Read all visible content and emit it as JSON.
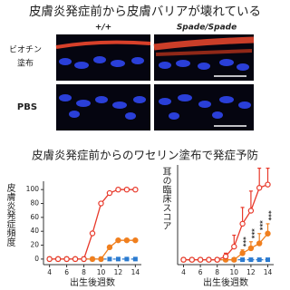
{
  "header": {
    "title": "皮膚炎発症前から皮膚バリアが壊れている",
    "columns": [
      "+/+",
      "Spade/Spade"
    ],
    "rows": [
      [
        "ビオチン",
        "塗布"
      ],
      [
        "PBS"
      ]
    ]
  },
  "section_title": "皮膚炎発症前からのワセリン塗布で発症予防",
  "chart_data": [
    {
      "type": "line",
      "ylabel": "皮膚炎発症頻度",
      "xlabel": "出生後週数",
      "x": [
        4,
        5,
        6,
        7,
        8,
        9,
        10,
        11,
        12,
        13,
        14
      ],
      "xlim": [
        3.3,
        14.7
      ],
      "xticks": [
        4,
        6,
        8,
        10,
        12,
        14
      ],
      "ylim": [
        -8,
        112
      ],
      "yticks": [
        0,
        20,
        40,
        60,
        80,
        100
      ],
      "series": [
        {
          "name": "",
          "color": "#2b7bd0",
          "marker": "square",
          "dash": true,
          "values": [
            0,
            0,
            0,
            0,
            0,
            0,
            0,
            0,
            0,
            0,
            0
          ]
        },
        {
          "name": "",
          "color": "#f07f1e",
          "marker": "filled-circle",
          "values": [
            0,
            0,
            0,
            0,
            0,
            0,
            0,
            17,
            27,
            27,
            27
          ]
        },
        {
          "name": "",
          "color": "#e8392b",
          "marker": "open-circle",
          "values": [
            0,
            0,
            0,
            0,
            0,
            37,
            80,
            95,
            100,
            100,
            100
          ]
        }
      ]
    },
    {
      "type": "line",
      "ylabel": "耳の臨床スコア",
      "xlabel": "出生後週数",
      "x": [
        4,
        5,
        6,
        7,
        8,
        9,
        10,
        11,
        12,
        13,
        14
      ],
      "xlim": [
        3.3,
        14.7
      ],
      "xticks": [
        4,
        6,
        8,
        10,
        12,
        14
      ],
      "ylim": [
        -0.15,
        2.9
      ],
      "series": [
        {
          "name": "",
          "color": "#2b7bd0",
          "marker": "square",
          "dash": true,
          "values": [
            0,
            0,
            0,
            0,
            0,
            0,
            0,
            0,
            0,
            0,
            0
          ],
          "errors": [
            0,
            0,
            0,
            0,
            0,
            0,
            0,
            0,
            0,
            0,
            0
          ]
        },
        {
          "name": "",
          "color": "#f07f1e",
          "marker": "filled-circle",
          "values": [
            0,
            0,
            0,
            0,
            0,
            0,
            0,
            0.2,
            0.35,
            0.5,
            0.8
          ],
          "errors": [
            0,
            0,
            0,
            0,
            0,
            0,
            0,
            0.1,
            0.2,
            0.3,
            0.3
          ]
        },
        {
          "name": "",
          "color": "#e8392b",
          "marker": "open-circle",
          "values": [
            0,
            0,
            0,
            0,
            0,
            0.1,
            0.4,
            1.1,
            1.5,
            2.2,
            2.3
          ],
          "errors": [
            0,
            0,
            0,
            0,
            0,
            0.1,
            0.35,
            0.5,
            0.6,
            0.6,
            0.5
          ]
        }
      ],
      "annotations": [
        {
          "text": "***",
          "x": 11
        },
        {
          "text": "***",
          "x": 12
        },
        {
          "text": "***",
          "x": 13
        },
        {
          "text": "***",
          "x": 14
        }
      ]
    }
  ]
}
